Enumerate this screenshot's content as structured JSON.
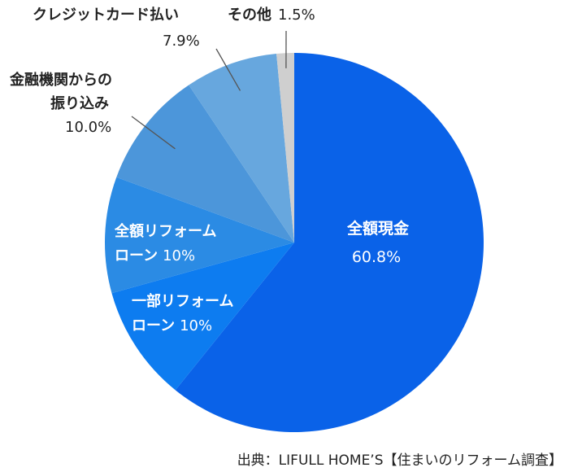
{
  "chart_data": {
    "type": "pie",
    "title": "",
    "source": "出典：LIFULL HOME’S【住まいのリフォーム調査】",
    "slices": [
      {
        "name_lines": [
          "全額現金"
        ],
        "value_text": "60.8%",
        "value": 60.8,
        "color": "#0A62E8",
        "label_color": "#ffffff",
        "label_inside": true
      },
      {
        "name_lines": [
          "一部リフォーム",
          "ローン"
        ],
        "value_text": "10%",
        "value": 9.9,
        "color": "#0D7CF0",
        "label_color": "#ffffff",
        "label_inside": true
      },
      {
        "name_lines": [
          "全額リフォーム",
          "ローン"
        ],
        "value_text": "10%",
        "value": 9.9,
        "color": "#2B8BE4",
        "label_color": "#ffffff",
        "label_inside": true
      },
      {
        "name_lines": [
          "金融機関からの",
          "振り込み"
        ],
        "value_text": "10.0%",
        "value": 10.0,
        "color": "#4C96DA",
        "label_color": "#222222",
        "label_inside": false
      },
      {
        "name_lines": [
          "クレジットカード払い"
        ],
        "value_text": "7.9%",
        "value": 7.9,
        "color": "#67A7DE",
        "label_color": "#222222",
        "label_inside": false
      },
      {
        "name_lines": [
          "その他"
        ],
        "value_text": "1.5%",
        "value": 1.5,
        "color": "#CFCFCF",
        "label_color": "#222222",
        "label_inside": false
      }
    ]
  }
}
